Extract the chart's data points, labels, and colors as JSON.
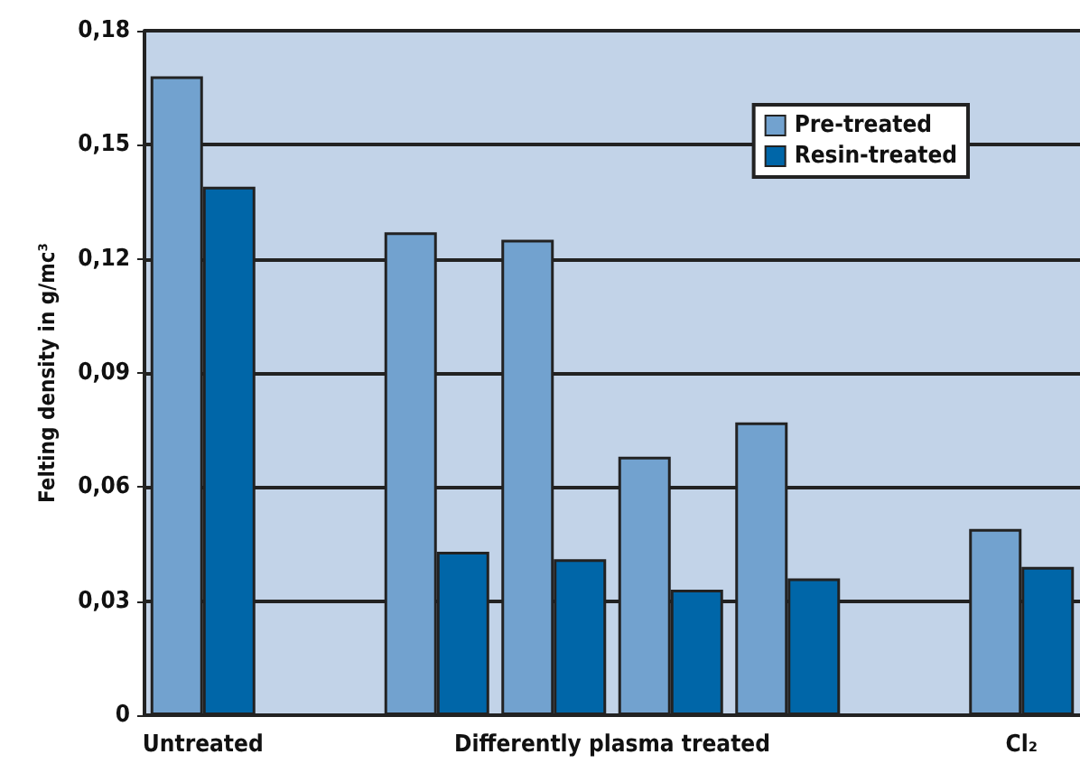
{
  "chart_data": {
    "type": "bar",
    "ylabel": "Felting density in g/mc³",
    "categories": [
      "Untreated",
      null,
      null,
      null,
      null,
      null,
      null,
      "Cl₂"
    ],
    "series": [
      {
        "name": "Pre-treated",
        "color": "#72a2cf",
        "values": [
          0.168,
          null,
          0.127,
          0.125,
          0.068,
          0.077,
          null,
          0.049
        ]
      },
      {
        "name": "Resin-treated",
        "color": "#0066a8",
        "values": [
          0.139,
          null,
          0.043,
          0.041,
          0.033,
          0.036,
          null,
          0.039
        ]
      }
    ],
    "annotations": [
      "Differently plasma treated"
    ],
    "ylim": [
      0,
      0.18
    ],
    "yticks": [
      0,
      {
        "value": 0.03,
        "label": "0,03"
      },
      {
        "value": 0.06,
        "label": "0,06"
      },
      {
        "value": 0.09,
        "label": "0,09"
      },
      {
        "value": 0.12,
        "label": "0,12"
      },
      {
        "value": 0.15,
        "label": "0,15"
      },
      {
        "value": 0.18,
        "label": "0,18"
      }
    ],
    "grid": "y",
    "legend": "top right"
  }
}
